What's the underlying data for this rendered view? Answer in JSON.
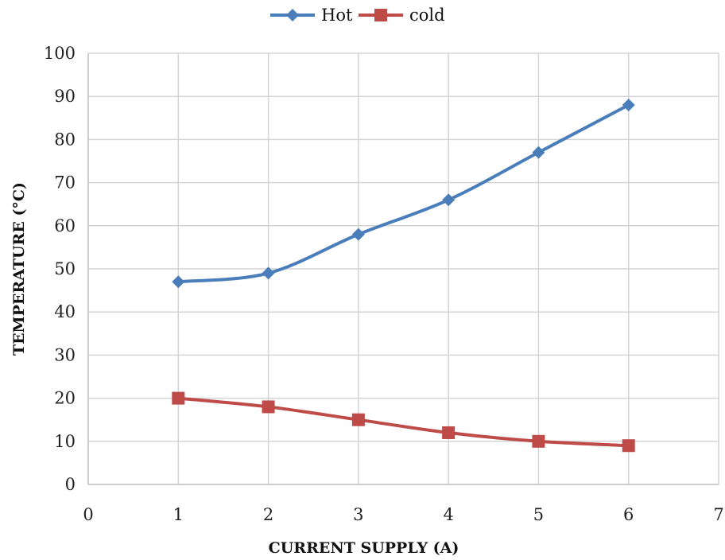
{
  "chart_data": {
    "type": "line",
    "xlabel": "CURRENT SUPPLY (A)",
    "ylabel": "TEMPERATURE (°C)",
    "xlim": [
      0,
      7
    ],
    "ylim": [
      0,
      100
    ],
    "x_ticks": [
      "0",
      "1",
      "2",
      "3",
      "4",
      "5",
      "6",
      "7"
    ],
    "y_ticks": [
      "0",
      "10",
      "20",
      "30",
      "40",
      "50",
      "60",
      "70",
      "80",
      "90",
      "100"
    ],
    "grid": true,
    "legend_position": "top-center",
    "x": [
      1,
      2,
      3,
      4,
      5,
      6
    ],
    "series": [
      {
        "name": "Hot",
        "values": [
          47,
          49,
          58,
          66,
          77,
          88
        ],
        "color": "#4a7ebb",
        "marker": "diamond"
      },
      {
        "name": "cold",
        "values": [
          20,
          18,
          15,
          12,
          10,
          9
        ],
        "color": "#be4b48",
        "marker": "square"
      }
    ]
  }
}
